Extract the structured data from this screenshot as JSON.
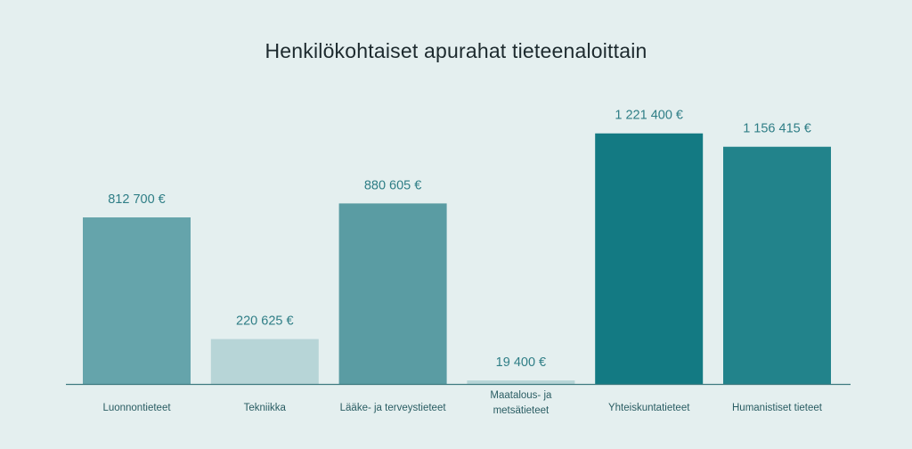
{
  "chart_data": {
    "type": "bar",
    "title": "Henkilökohtaiset apurahat tieteenaloittain",
    "xlabel": "",
    "ylabel": "",
    "ylim": [
      0,
      1320000
    ],
    "grid": false,
    "legend": "none",
    "categories": [
      "Luonnontieteet",
      "Tekniikka",
      "Lääke- ja terveystieteet",
      "Maatalous- ja metsätieteet",
      "Yhteiskuntatieteet",
      "Humanistiset tieteet"
    ],
    "category_lines": [
      [
        "Luonnontieteet"
      ],
      [
        "Tekniikka"
      ],
      [
        "Lääke- ja terveystieteet"
      ],
      [
        "Maatalous- ja",
        "metsätieteet"
      ],
      [
        "Yhteiskuntatieteet"
      ],
      [
        "Humanistiset tieteet"
      ]
    ],
    "values": [
      812700,
      220625,
      880605,
      19400,
      1221400,
      1156415
    ],
    "value_labels": [
      "812 700 €",
      "220 625 €",
      "880 605 €",
      "19 400 €",
      "1 221 400 €",
      "1 156 415 €"
    ],
    "colors": [
      "#65a4ab",
      "#b7d5d7",
      "#5a9ca3",
      "#b7d5d7",
      "#137a83",
      "#22838b"
    ],
    "label_color": "#2f7e86",
    "axis_color": "#3e7a80"
  }
}
